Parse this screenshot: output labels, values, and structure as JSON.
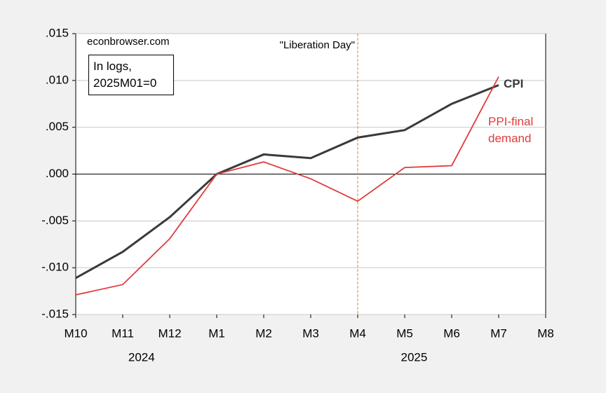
{
  "chart_data": {
    "type": "line",
    "categories": [
      "M10",
      "M11",
      "M12",
      "M1",
      "M2",
      "M3",
      "M4",
      "M5",
      "M6",
      "M7",
      "M8"
    ],
    "years": [
      "2024",
      "2025"
    ],
    "series": [
      {
        "name": "CPI",
        "color": "#3a3a3a",
        "values": [
          -0.0111,
          -0.0083,
          -0.0046,
          0.0,
          0.0021,
          0.0017,
          0.0039,
          0.0047,
          0.0075,
          0.0095,
          null
        ]
      },
      {
        "name": "PPI-final demand",
        "color": "#e03c3c",
        "values": [
          -0.0129,
          -0.0118,
          -0.0069,
          0.0,
          0.0013,
          -0.0005,
          -0.0029,
          0.0007,
          0.0009,
          0.0104,
          null
        ]
      }
    ],
    "ylim": [
      -0.015,
      0.015
    ],
    "yticks": [
      {
        "value": -0.015,
        "label": "-.015"
      },
      {
        "value": -0.01,
        "label": "-.010"
      },
      {
        "value": -0.005,
        "label": "-.005"
      },
      {
        "value": 0.0,
        "label": ".000"
      },
      {
        "value": 0.005,
        "label": ".005"
      },
      {
        "value": 0.01,
        "label": ".010"
      },
      {
        "value": 0.015,
        "label": ".015"
      }
    ],
    "grid": true,
    "annotations": {
      "source": "econbrowser.com",
      "note": "In logs, 2025M01=0"
    },
    "event": {
      "label": "\"Liberation Day\"",
      "category": "M4",
      "color": "#e08a1e"
    }
  }
}
